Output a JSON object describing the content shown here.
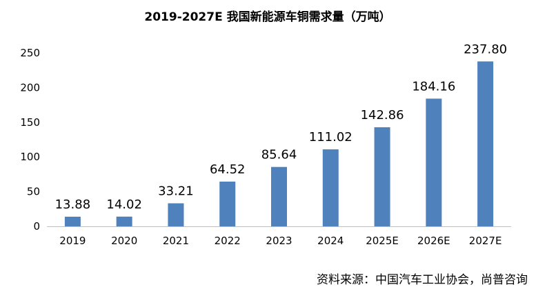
{
  "chart_data": {
    "type": "bar",
    "title": "2019-2027E 我国新能源车铜需求量（万吨）",
    "xlabel": "",
    "ylabel": "",
    "categories": [
      "2019",
      "2020",
      "2021",
      "2022",
      "2023",
      "2024",
      "2025E",
      "2026E",
      "2027E"
    ],
    "values": [
      13.88,
      14.02,
      33.21,
      64.52,
      85.64,
      111.02,
      142.86,
      184.16,
      237.8
    ],
    "value_labels": [
      "13.88",
      "14.02",
      "33.21",
      "64.52",
      "85.64",
      "111.02",
      "142.86",
      "184.16",
      "237.80"
    ],
    "ylim": [
      0,
      250
    ],
    "yticks": [
      0,
      50,
      100,
      150,
      200,
      250
    ],
    "grid": false,
    "legend": "none",
    "bar_color": "#4f81bd",
    "axis_color": "#bfbfbf"
  },
  "source": "资料来源：中国汽车工业协会，尚普咨询"
}
